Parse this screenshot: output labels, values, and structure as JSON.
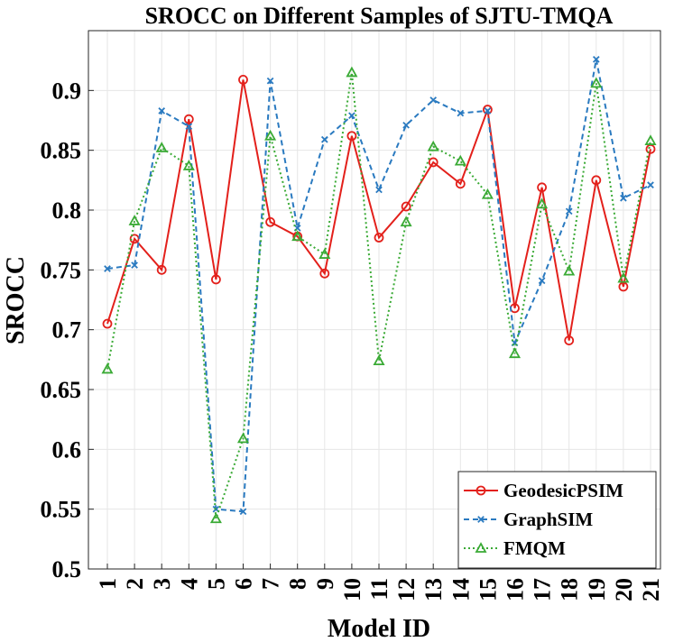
{
  "chart_data": {
    "type": "line",
    "title": "SROCC on Different Samples of SJTU-TMQA",
    "xlabel": "Model ID",
    "ylabel": "SROCC",
    "x": [
      "1",
      "2",
      "3",
      "4",
      "5",
      "6",
      "7",
      "8",
      "9",
      "10",
      "11",
      "12",
      "13",
      "14",
      "15",
      "16",
      "17",
      "18",
      "19",
      "20",
      "21"
    ],
    "ylim": [
      0.5,
      0.95
    ],
    "yticks": [
      "0.5",
      "0.55",
      "0.6",
      "0.65",
      "0.7",
      "0.75",
      "0.8",
      "0.85",
      "0.9"
    ],
    "grid": true,
    "legend_position": "bottom-right",
    "series": [
      {
        "name": "GeodesicPSIM",
        "color": "#e3201b",
        "style": "solid",
        "marker": "circle",
        "values": [
          0.705,
          0.776,
          0.75,
          0.876,
          0.742,
          0.909,
          0.79,
          0.778,
          0.747,
          0.862,
          0.777,
          0.803,
          0.84,
          0.822,
          0.884,
          0.718,
          0.819,
          0.691,
          0.825,
          0.736,
          0.851
        ]
      },
      {
        "name": "GraphSIM",
        "color": "#2a7ac0",
        "style": "dashed",
        "marker": "x",
        "values": [
          0.751,
          0.754,
          0.883,
          0.87,
          0.55,
          0.548,
          0.908,
          0.785,
          0.859,
          0.879,
          0.817,
          0.871,
          0.892,
          0.881,
          0.883,
          0.689,
          0.741,
          0.799,
          0.926,
          0.81,
          0.821
        ]
      },
      {
        "name": "FMQM",
        "color": "#3aaa35",
        "style": "dotted",
        "marker": "triangle",
        "values": [
          0.667,
          0.791,
          0.852,
          0.837,
          0.542,
          0.609,
          0.862,
          0.778,
          0.763,
          0.915,
          0.674,
          0.79,
          0.853,
          0.841,
          0.813,
          0.68,
          0.805,
          0.749,
          0.906,
          0.743,
          0.858
        ]
      }
    ]
  }
}
